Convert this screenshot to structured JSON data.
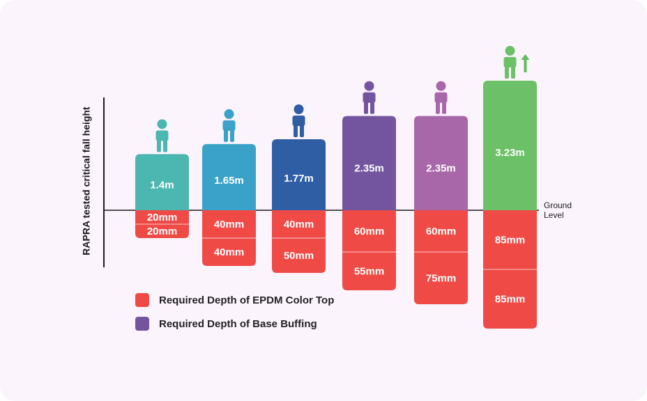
{
  "chart_data": {
    "type": "bar",
    "ylabel": "RAPRA tested critical fall height",
    "baseline_label": [
      "Ground",
      "Level"
    ],
    "categories": [
      "1.4m",
      "1.65m",
      "1.77m",
      "2.35m",
      "2.35m",
      "3.23m"
    ],
    "fall_height_m": [
      1.4,
      1.65,
      1.77,
      2.35,
      2.35,
      3.23
    ],
    "bar_colors": [
      "#4cb6b0",
      "#3aa2c9",
      "#2f5ea5",
      "#73559f",
      "#a767a8",
      "#6cc067"
    ],
    "series": [
      {
        "name": "Required Depth of EPDM Color Top",
        "unit": "mm",
        "values": [
          20,
          40,
          40,
          60,
          60,
          85
        ],
        "labels": [
          "20mm",
          "40mm",
          "40mm",
          "60mm",
          "60mm",
          "85mm"
        ]
      },
      {
        "name": "Required Depth of Base Buffing",
        "unit": "mm",
        "values": [
          20,
          40,
          50,
          55,
          75,
          85
        ],
        "labels": [
          "20mm",
          "40mm",
          "50mm",
          "55mm",
          "75mm",
          "85mm"
        ]
      }
    ],
    "up_arrow_on_last": true
  },
  "legend": [
    {
      "label": "Required Depth of EPDM Color Top",
      "color": "#ef4a46"
    },
    {
      "label": "Required Depth of Base Buffing",
      "color": "#73559f"
    }
  ],
  "colors": {
    "below_ground": "#ef4a46",
    "axis": "#1c1c1c",
    "arrow": "#5ebd5c"
  }
}
